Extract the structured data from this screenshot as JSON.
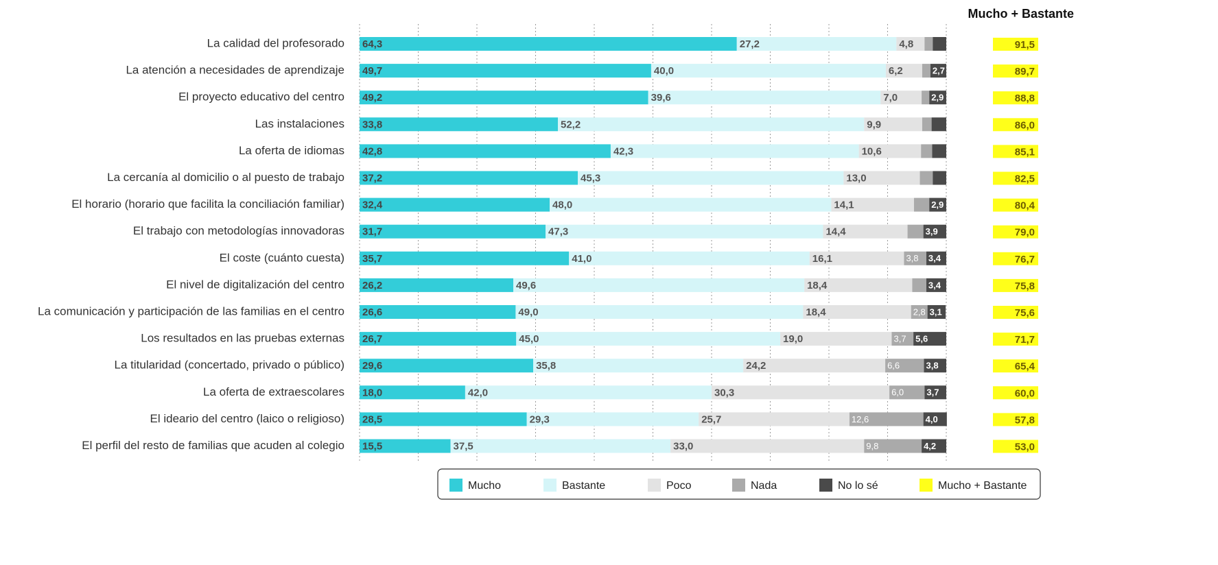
{
  "chart_data": {
    "type": "stacked_bar_horizontal",
    "categories": [
      "La calidad del profesorado",
      "La atención a necesidades de aprendizaje",
      "El proyecto educativo del centro",
      "Las instalaciones",
      "La oferta de idiomas",
      "La cercanía al domicilio o al puesto de trabajo",
      "El horario (horario que facilita la conciliación familiar)",
      "El trabajo con metodologías innovadoras",
      "El coste (cuánto cuesta)",
      "El nivel de digitalización del centro",
      "La comunicación y participación de las familias en el centro",
      "Los resultados en las pruebas externas",
      "La titularidad (concertado, privado o público)",
      "La oferta de extraescolares",
      "El ideario del centro (laico o religioso)",
      "El perfil del resto de familias que acuden al colegio"
    ],
    "series": [
      {
        "name": "Mucho",
        "color": "#33cdd9",
        "values": [
          64.3,
          49.7,
          49.2,
          33.8,
          42.8,
          37.2,
          32.4,
          31.7,
          35.7,
          26.2,
          26.6,
          26.7,
          29.6,
          18.0,
          28.5,
          15.5
        ],
        "value_labels": [
          "64,3",
          "49,7",
          "49,2",
          "33,8",
          "42,8",
          "37,2",
          "32,4",
          "31,7",
          "35,7",
          "26,2",
          "26,6",
          "26,7",
          "29,6",
          "18,0",
          "28,5",
          "15,5"
        ]
      },
      {
        "name": "Bastante",
        "color": "#d5f5f8",
        "values": [
          27.2,
          40.0,
          39.6,
          52.2,
          42.3,
          45.3,
          48.0,
          47.3,
          41.0,
          49.6,
          49.0,
          45.0,
          35.8,
          42.0,
          29.3,
          37.5
        ],
        "value_labels": [
          "27,2",
          "40,0",
          "39,6",
          "52,2",
          "42,3",
          "45,3",
          "48,0",
          "47,3",
          "41,0",
          "49,6",
          "49,0",
          "45,0",
          "35,8",
          "42,0",
          "29,3",
          "37,5"
        ]
      },
      {
        "name": "Poco",
        "color": "#e3e3e3",
        "values": [
          4.8,
          6.2,
          7.0,
          9.9,
          10.6,
          13.0,
          14.1,
          14.4,
          16.1,
          18.4,
          18.4,
          19.0,
          24.2,
          30.3,
          25.7,
          33.0
        ],
        "value_labels": [
          "4,8",
          "6,2",
          "7,0",
          "9,9",
          "10,6",
          "13,0",
          "14,1",
          "14,4",
          "16,1",
          "18,4",
          "18,4",
          "19,0",
          "24,2",
          "30,3",
          "25,7",
          "33,0"
        ]
      },
      {
        "name": "Nada",
        "color": "#aaaaaa",
        "values": [
          1.4,
          1.4,
          1.3,
          1.6,
          1.9,
          2.2,
          2.6,
          2.7,
          3.8,
          2.4,
          2.8,
          3.7,
          6.6,
          6.0,
          12.6,
          9.8
        ],
        "value_labels": [
          null,
          null,
          null,
          null,
          null,
          null,
          null,
          null,
          "3,8",
          null,
          "2,8",
          "3,7",
          "6,6",
          "6,0",
          "12,6",
          "9,8"
        ]
      },
      {
        "name": "No lo sé",
        "color": "#4a4a4a",
        "values": [
          2.3,
          2.7,
          2.9,
          2.5,
          2.4,
          2.3,
          2.9,
          3.9,
          3.4,
          3.4,
          3.1,
          5.6,
          3.8,
          3.7,
          4.0,
          4.2
        ],
        "value_labels": [
          null,
          "2,7",
          "2,9",
          null,
          null,
          null,
          "2,9",
          "3,9",
          "3,4",
          "3,4",
          "3,1",
          "5,6",
          "3,8",
          "3,7",
          "4,0",
          "4,2"
        ]
      }
    ],
    "totals": {
      "name": "Mucho + Bastante",
      "color": "#ffff1a",
      "values": [
        91.5,
        89.7,
        88.8,
        86.0,
        85.1,
        82.5,
        80.4,
        79.0,
        76.7,
        75.8,
        75.6,
        71.7,
        65.4,
        60.0,
        57.8,
        53.0
      ],
      "value_labels": [
        "91,5",
        "89,7",
        "88,8",
        "86,0",
        "85,1",
        "82,5",
        "80,4",
        "79,0",
        "76,7",
        "75,8",
        "75,6",
        "71,7",
        "65,4",
        "60,0",
        "57,8",
        "53,0"
      ]
    },
    "xlim": [
      0,
      100
    ],
    "xticks": [
      0,
      10,
      20,
      30,
      40,
      50,
      60,
      70,
      80,
      90,
      100
    ],
    "grid": true
  }
}
